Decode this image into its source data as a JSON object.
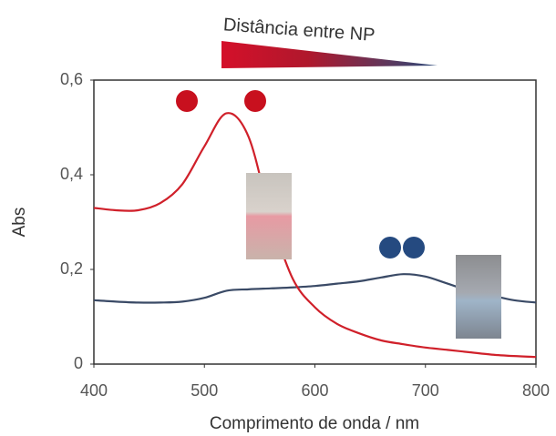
{
  "chart_data": {
    "type": "line",
    "annotation": "Distância entre NP",
    "xlabel": "Comprimento de onda / nm",
    "ylabel": "Abs",
    "x": [
      400,
      420,
      440,
      460,
      480,
      500,
      520,
      540,
      560,
      580,
      600,
      620,
      640,
      660,
      680,
      700,
      720,
      740,
      760,
      780,
      800
    ],
    "series": [
      {
        "color": "#d0202a",
        "values": [
          0.33,
          0.325,
          0.325,
          0.34,
          0.38,
          0.46,
          0.53,
          0.48,
          0.31,
          0.18,
          0.12,
          0.085,
          0.065,
          0.05,
          0.042,
          0.035,
          0.03,
          0.025,
          0.02,
          0.017,
          0.015
        ]
      },
      {
        "color": "#3a4a66",
        "values": [
          0.135,
          0.132,
          0.13,
          0.13,
          0.132,
          0.14,
          0.155,
          0.158,
          0.16,
          0.162,
          0.165,
          0.17,
          0.175,
          0.183,
          0.19,
          0.185,
          0.17,
          0.155,
          0.145,
          0.135,
          0.13
        ]
      }
    ],
    "xlim": [
      400,
      800
    ],
    "xticks": [
      400,
      500,
      600,
      700,
      800
    ],
    "ylim": [
      0,
      0.6
    ],
    "yticks": [
      0,
      {
        "value": 0.2,
        "label": "0,2"
      },
      {
        "value": 0.4,
        "label": "0,4"
      },
      {
        "value": 0.6,
        "label": "0,6"
      }
    ],
    "grid": false
  }
}
